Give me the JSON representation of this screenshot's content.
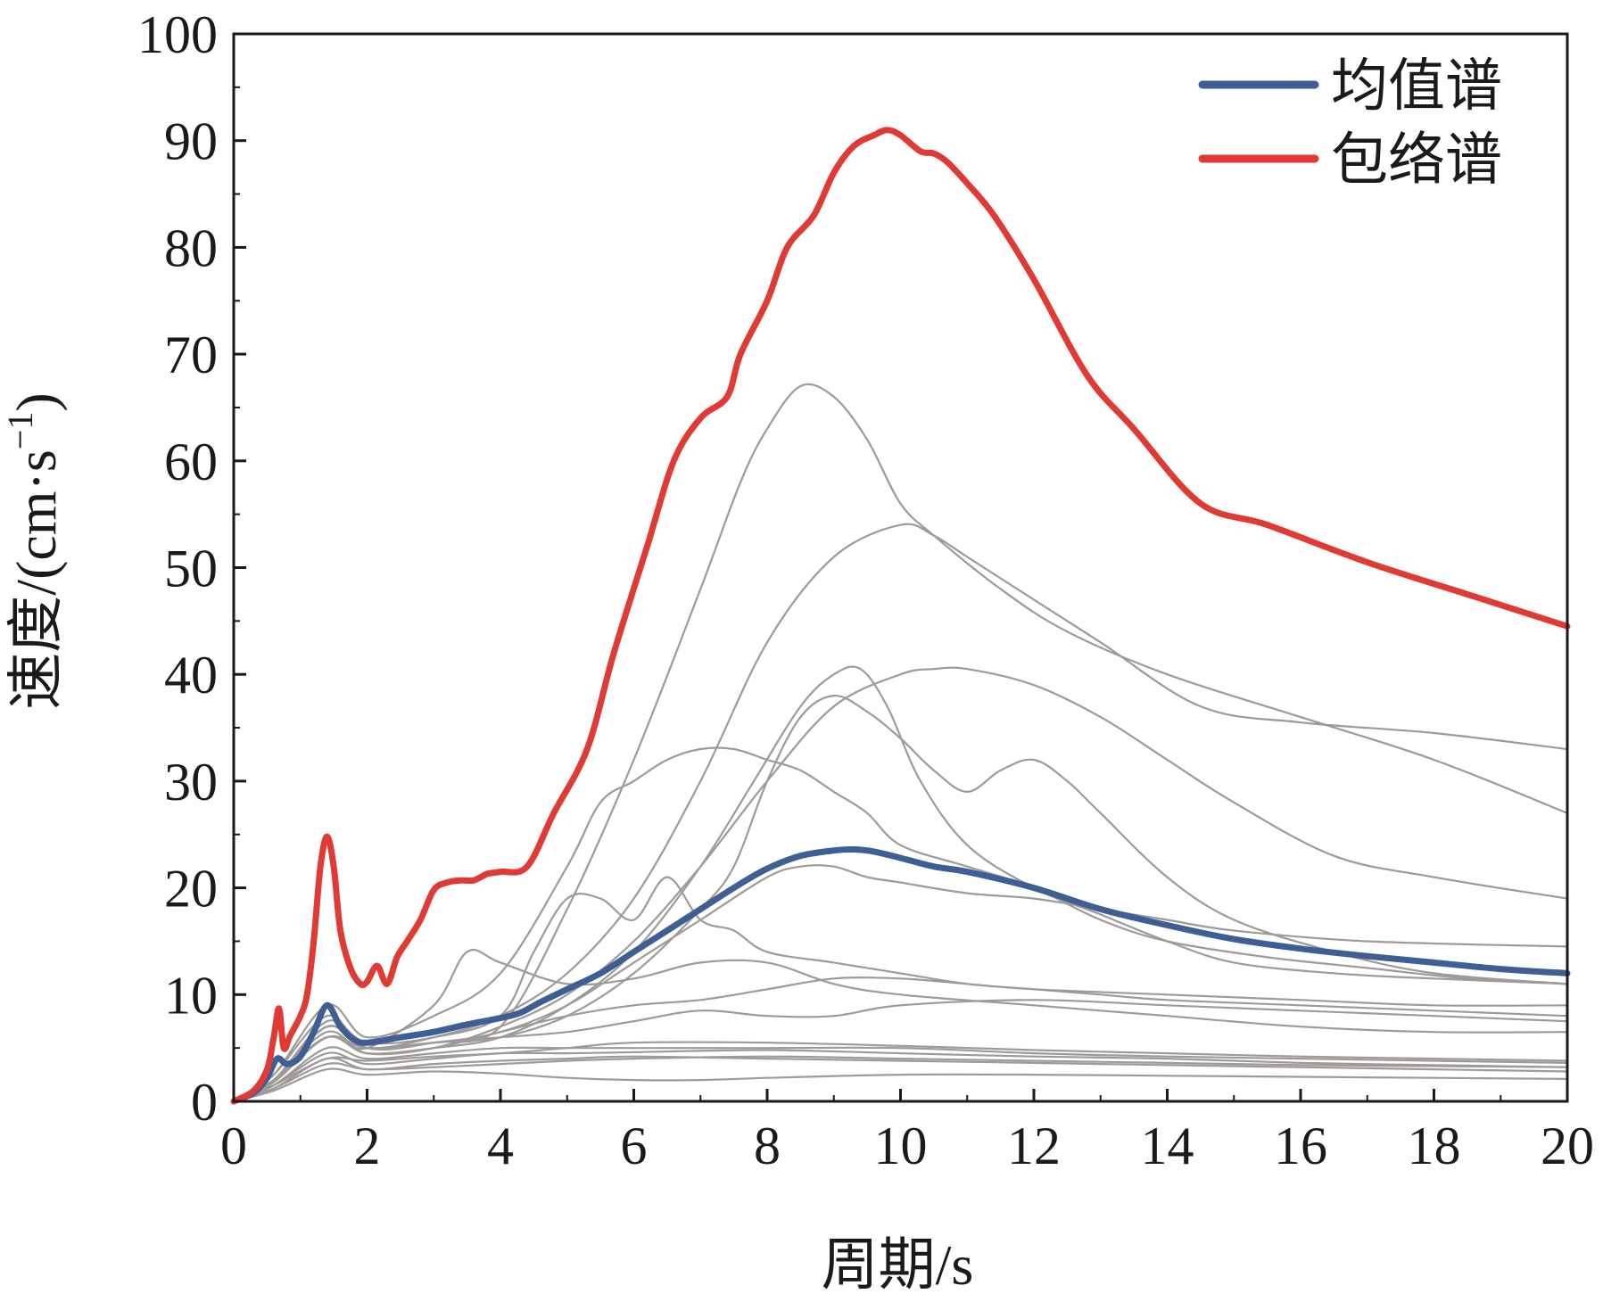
{
  "chart_data": {
    "type": "line",
    "xlabel": "周期/s",
    "ylabel": "速度/(cm·s",
    "ylabel_sup": "−1",
    "ylabel_close": ")",
    "xlim": [
      0,
      20
    ],
    "ylim": [
      0,
      100
    ],
    "x_ticks": [
      0,
      2,
      4,
      6,
      8,
      10,
      12,
      14,
      16,
      18,
      20
    ],
    "y_ticks": [
      0,
      10,
      20,
      30,
      40,
      50,
      60,
      70,
      80,
      90,
      100
    ],
    "grid": false,
    "legend_position": "top-right",
    "series": [
      {
        "name": "均值谱",
        "color": "#3d5f93",
        "x": [
          0,
          0.3,
          0.5,
          0.65,
          0.8,
          1.0,
          1.2,
          1.4,
          1.6,
          1.8,
          2.0,
          2.5,
          3.0,
          3.5,
          4.0,
          4.3,
          4.6,
          5.0,
          5.5,
          6.0,
          6.5,
          7.0,
          7.5,
          8.0,
          8.5,
          9.0,
          9.3,
          9.6,
          10.0,
          10.5,
          11.0,
          12.0,
          13.0,
          14.0,
          15.0,
          16.0,
          17.0,
          18.0,
          19.0,
          20.0
        ],
        "y": [
          0,
          0.8,
          2.2,
          4.0,
          3.5,
          4.2,
          6.5,
          9.0,
          7.0,
          5.8,
          5.5,
          6.0,
          6.5,
          7.2,
          7.8,
          8.3,
          9.3,
          10.5,
          12.0,
          14.0,
          16.0,
          18.0,
          20.0,
          21.8,
          23.0,
          23.5,
          23.6,
          23.4,
          22.8,
          22.0,
          21.5,
          20.0,
          18.0,
          16.5,
          15.2,
          14.3,
          13.6,
          13.0,
          12.4,
          12.0
        ]
      },
      {
        "name": "包络谱",
        "color": "#e03a34",
        "x": [
          0,
          0.3,
          0.5,
          0.6,
          0.68,
          0.75,
          0.85,
          1.0,
          1.1,
          1.2,
          1.3,
          1.4,
          1.5,
          1.6,
          1.75,
          1.9,
          2.0,
          2.15,
          2.3,
          2.45,
          2.6,
          2.8,
          3.0,
          3.2,
          3.4,
          3.6,
          3.8,
          4.0,
          4.4,
          4.8,
          5.3,
          5.7,
          6.2,
          6.6,
          7.0,
          7.4,
          7.6,
          8.0,
          8.3,
          8.7,
          9.0,
          9.3,
          9.6,
          9.8,
          10.0,
          10.3,
          10.5,
          10.7,
          11.0,
          11.4,
          12.0,
          12.8,
          13.5,
          14.5,
          15.5,
          17.0,
          18.5,
          20.0
        ],
        "y": [
          0,
          1.0,
          3.0,
          6.0,
          8.7,
          5.0,
          6.2,
          8.0,
          10.0,
          15.0,
          22.0,
          24.8,
          22.0,
          16.0,
          12.5,
          11.0,
          11.2,
          12.7,
          11.0,
          13.5,
          15.0,
          17.0,
          19.8,
          20.5,
          20.7,
          20.7,
          21.3,
          21.5,
          22.0,
          27.0,
          33.0,
          42.0,
          52.0,
          60.0,
          64.0,
          66.0,
          70.0,
          75.0,
          80.0,
          83.0,
          87.0,
          89.5,
          90.5,
          91.0,
          90.5,
          89.0,
          88.8,
          88.0,
          86.0,
          83.0,
          77.0,
          68.0,
          63.0,
          56.0,
          54.0,
          50.5,
          47.5,
          44.5
        ]
      }
    ],
    "background_series": {
      "color": "#9e9a98",
      "curves": [
        {
          "x": [
            0,
            0.6,
            1.4,
            2.0,
            3.0,
            4.0,
            5.0,
            6.0,
            7.0,
            7.6,
            8.0,
            8.5,
            9.0,
            9.5,
            10.0,
            10.5,
            11.5,
            12.5,
            14.0,
            16.0,
            18.0,
            20.0
          ],
          "y": [
            0,
            2.5,
            8.0,
            5.0,
            5.5,
            7.0,
            18.0,
            32.0,
            48.0,
            58.0,
            63.0,
            67.0,
            66.0,
            62.0,
            56.0,
            53.0,
            48.0,
            44.0,
            40.0,
            36.0,
            32.0,
            27.0
          ]
        },
        {
          "x": [
            0,
            0.6,
            1.4,
            2.0,
            3.0,
            4.0,
            5.0,
            6.0,
            7.0,
            8.0,
            9.0,
            10.0,
            10.5,
            11.0,
            12.0,
            13.0,
            14.5,
            16.0,
            18.0,
            20.0
          ],
          "y": [
            0,
            2.0,
            7.0,
            5.0,
            6.0,
            8.0,
            12.0,
            19.0,
            30.0,
            43.0,
            51.0,
            54.0,
            53.0,
            51.0,
            47.0,
            43.0,
            37.0,
            35.5,
            34.5,
            33.0
          ]
        },
        {
          "x": [
            0,
            0.6,
            1.4,
            2.0,
            3.0,
            4.0,
            5.0,
            6.0,
            7.0,
            8.0,
            9.0,
            10.0,
            10.5,
            11.0,
            12.0,
            13.0,
            14.0,
            15.0,
            16.5,
            18.0,
            20.0
          ],
          "y": [
            0,
            2.0,
            6.5,
            4.5,
            5.0,
            7.0,
            10.0,
            15.0,
            22.0,
            30.0,
            37.0,
            40.0,
            40.5,
            40.5,
            39.0,
            36.0,
            32.0,
            28.0,
            23.0,
            21.0,
            19.0
          ]
        },
        {
          "x": [
            0,
            0.6,
            1.4,
            2.0,
            3.0,
            4.0,
            5.0,
            6.0,
            7.0,
            7.8,
            8.5,
            9.0,
            9.4,
            9.8,
            10.3,
            11.0,
            12.0,
            13.0,
            14.0,
            15.0,
            16.5,
            18.0,
            20.0
          ],
          "y": [
            0,
            2.0,
            6.0,
            4.5,
            5.0,
            6.0,
            9.0,
            14.0,
            22.0,
            30.0,
            37.0,
            40.0,
            40.5,
            37.0,
            30.0,
            24.0,
            20.0,
            17.5,
            15.0,
            13.0,
            12.0,
            11.5,
            11.0
          ]
        },
        {
          "x": [
            0,
            0.6,
            1.4,
            2.0,
            3.0,
            4.0,
            5.0,
            5.5,
            6.0,
            6.5,
            7.0,
            7.5,
            8.0,
            8.5,
            9.0,
            9.5,
            10.0,
            11.0,
            12.0,
            13.0,
            14.0,
            15.5,
            17.0,
            18.5,
            20.0
          ],
          "y": [
            0,
            2.5,
            9.0,
            6.0,
            8.0,
            12.0,
            22.0,
            28.0,
            30.0,
            32.0,
            33.0,
            33.0,
            32.0,
            31.0,
            29.0,
            27.0,
            24.0,
            22.0,
            20.0,
            17.0,
            15.0,
            13.5,
            12.5,
            11.5,
            11.0
          ]
        },
        {
          "x": [
            0,
            0.6,
            1.4,
            2.0,
            3.0,
            4.0,
            5.0,
            6.0,
            7.0,
            7.5,
            8.0,
            8.5,
            9.0,
            9.5,
            10.0,
            10.5,
            11.0,
            11.5,
            12.0,
            12.5,
            13.0,
            14.0,
            15.0,
            16.5,
            18.0,
            20.0
          ],
          "y": [
            0,
            2.0,
            7.0,
            5.0,
            5.5,
            6.0,
            8.0,
            12.0,
            18.0,
            22.0,
            30.0,
            36.0,
            38.0,
            36.5,
            34.0,
            31.0,
            29.0,
            31.0,
            32.0,
            30.0,
            27.0,
            21.0,
            17.0,
            14.0,
            12.0,
            11.0
          ]
        },
        {
          "x": [
            0,
            0.6,
            1.4,
            2.0,
            3.0,
            4.0,
            5.0,
            6.0,
            7.0,
            8.0,
            8.5,
            9.0,
            9.5,
            10.0,
            11.0,
            12.0,
            13.0,
            14.0,
            15.0,
            17.0,
            20.0
          ],
          "y": [
            0,
            2.0,
            7.0,
            5.0,
            5.5,
            6.5,
            9.0,
            13.0,
            17.0,
            21.0,
            22.0,
            22.0,
            21.0,
            20.5,
            19.5,
            19.0,
            18.0,
            17.0,
            16.0,
            15.0,
            14.5
          ]
        },
        {
          "x": [
            0,
            0.6,
            1.4,
            2.0,
            3.0,
            4.0,
            4.5,
            5.0,
            5.5,
            6.0,
            6.5,
            7.0,
            7.5,
            8.0,
            9.0,
            10.0,
            11.0,
            12.0,
            13.0,
            14.0,
            16.0,
            18.0,
            20.0
          ],
          "y": [
            0,
            2.0,
            7.5,
            5.5,
            6.0,
            8.0,
            14.0,
            19.0,
            19.0,
            17.0,
            21.0,
            17.0,
            16.0,
            14.0,
            13.0,
            12.0,
            11.0,
            10.5,
            10.0,
            9.5,
            9.0,
            8.5,
            8.0
          ]
        },
        {
          "x": [
            0,
            0.6,
            1.4,
            2.0,
            3.0,
            3.5,
            4.0,
            5.0,
            6.0,
            7.0,
            8.0,
            9.0,
            10.0,
            12.0,
            14.0,
            16.0,
            18.0,
            20.0
          ],
          "y": [
            0,
            2.0,
            6.0,
            5.0,
            9.0,
            14.0,
            13.0,
            11.0,
            11.5,
            13.0,
            13.0,
            11.0,
            10.0,
            9.0,
            8.0,
            7.0,
            6.5,
            6.5
          ]
        },
        {
          "x": [
            0,
            0.6,
            1.4,
            2.0,
            3.0,
            4.0,
            5.0,
            6.0,
            7.0,
            8.0,
            9.0,
            10.0,
            11.0,
            12.0,
            14.0,
            16.0,
            18.0,
            20.0
          ],
          "y": [
            0,
            2.0,
            6.0,
            4.5,
            5.0,
            6.5,
            8.0,
            9.0,
            9.5,
            10.5,
            11.5,
            11.5,
            11.0,
            10.5,
            10.0,
            9.5,
            9.0,
            9.0
          ]
        },
        {
          "x": [
            0,
            0.6,
            1.4,
            2.0,
            3.0,
            4.0,
            5.0,
            6.0,
            7.0,
            8.0,
            9.0,
            10.0,
            12.0,
            14.0,
            16.0,
            18.0,
            20.0
          ],
          "y": [
            0,
            1.8,
            6.0,
            5.0,
            5.5,
            6.0,
            6.5,
            7.5,
            8.5,
            8.0,
            8.0,
            9.0,
            9.5,
            9.0,
            8.5,
            8.0,
            7.5
          ]
        },
        {
          "x": [
            0,
            0.6,
            1.4,
            2.0,
            3.0,
            4.0,
            5.0,
            6.0,
            7.0,
            8.0,
            10.0,
            12.0,
            14.0,
            16.0,
            18.0,
            20.0
          ],
          "y": [
            0,
            1.5,
            5.0,
            4.0,
            4.5,
            5.0,
            5.0,
            5.0,
            5.0,
            5.0,
            5.0,
            4.5,
            4.2,
            4.0,
            3.8,
            3.6
          ]
        },
        {
          "x": [
            0,
            0.6,
            1.4,
            2.0,
            3.0,
            4.0,
            5.0,
            6.0,
            8.0,
            10.0,
            12.0,
            14.0,
            16.0,
            18.0,
            20.0
          ],
          "y": [
            0,
            1.5,
            4.5,
            3.5,
            4.0,
            4.5,
            4.5,
            4.6,
            4.8,
            4.5,
            4.2,
            4.0,
            3.6,
            3.4,
            3.2
          ]
        },
        {
          "x": [
            0,
            0.6,
            1.4,
            2.0,
            3.0,
            4.0,
            5.0,
            6.0,
            8.0,
            10.0,
            12.0,
            14.0,
            16.0,
            18.0,
            20.0
          ],
          "y": [
            0,
            1.2,
            4.0,
            3.0,
            3.5,
            3.8,
            4.0,
            4.2,
            4.0,
            3.8,
            3.6,
            3.4,
            3.2,
            3.0,
            2.8
          ]
        },
        {
          "x": [
            0,
            0.6,
            1.4,
            2.0,
            3.0,
            4.0,
            5.0,
            6.0,
            7.0,
            8.0,
            10.0,
            12.0,
            14.0,
            16.0,
            18.0,
            20.0
          ],
          "y": [
            0,
            1.0,
            3.0,
            2.5,
            2.8,
            2.6,
            2.2,
            2.0,
            2.0,
            2.2,
            2.5,
            2.5,
            2.4,
            2.3,
            2.2,
            2.1
          ]
        },
        {
          "x": [
            0,
            0.6,
            1.4,
            2.0,
            3.0,
            4.0,
            5.0,
            6.0,
            8.0,
            10.0,
            12.0,
            14.0,
            16.0,
            18.0,
            20.0
          ],
          "y": [
            0,
            1.5,
            4.0,
            3.8,
            4.2,
            4.5,
            5.0,
            5.5,
            5.5,
            5.2,
            4.8,
            4.5,
            4.2,
            4.0,
            3.8
          ]
        },
        {
          "x": [
            0,
            0.6,
            1.4,
            2.0,
            3.0,
            4.0,
            5.0,
            6.0,
            8.0,
            10.0,
            12.0,
            14.0,
            16.0,
            18.0,
            20.0
          ],
          "y": [
            0,
            1.2,
            3.5,
            3.0,
            3.2,
            3.5,
            3.8,
            4.0,
            4.2,
            4.0,
            3.8,
            3.6,
            3.4,
            3.3,
            3.2
          ]
        }
      ]
    }
  }
}
